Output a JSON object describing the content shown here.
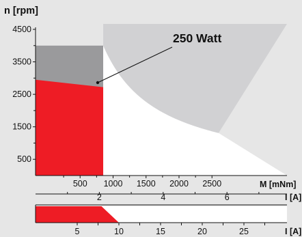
{
  "colors": {
    "background": "#e6e6e6",
    "continuous_region": "#ee1c25",
    "intermittent_gray": "#9a9a9c",
    "max_speed_region": "#ffffff",
    "upper_gray": "#d1d1d3",
    "axis": "#111111"
  },
  "chart_data": {
    "type": "area",
    "title": "",
    "ylabel": "n [rpm]",
    "xlabel": "M [mNm]",
    "ylim": [
      0,
      4500
    ],
    "xlim": [
      0,
      2600
    ],
    "y_tick_labels": [
      500,
      1500,
      2500,
      3500,
      4500
    ],
    "y_minor_ticks": [
      1000,
      2000,
      3000,
      4000
    ],
    "x_tick_labels": [
      500,
      1000,
      1500,
      2000,
      2500
    ],
    "power_curve": {
      "label": "250 Watt",
      "x_start": 850,
      "x_end": 2600
    },
    "regions": {
      "continuous": {
        "torque_max": 850,
        "speed_at_zero": 2950,
        "speed_at_max_torque": 2720
      },
      "intermittent_top_speed": 4000,
      "max_speed_envelope": {
        "torque_max": 850,
        "speed": 4000
      }
    },
    "current_axis_1": {
      "label": "I [A]",
      "ticks": [
        2,
        4,
        6
      ],
      "xlim": [
        0,
        8
      ]
    },
    "current_axis_2": {
      "label": "I [A]",
      "ticks": [
        5,
        10,
        15,
        20,
        25
      ],
      "xlim": [
        0,
        28
      ],
      "continuous_current": 7.5,
      "taper_end": 10
    }
  }
}
